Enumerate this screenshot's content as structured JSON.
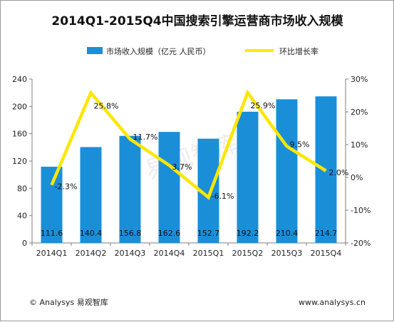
{
  "chart_data": {
    "type": "bar",
    "title": "2014Q1-2015Q4中国搜索引擎运营商市场收入规模",
    "categories": [
      "2014Q1",
      "2014Q2",
      "2014Q3",
      "2014Q4",
      "2015Q1",
      "2015Q2",
      "2015Q3",
      "2015Q4"
    ],
    "series": [
      {
        "name": "市场收入规模（亿元 人民币）",
        "type": "bar",
        "axis": "left",
        "color": "#1a8fd8",
        "values": [
          111.6,
          140.4,
          156.8,
          162.6,
          152.7,
          192.2,
          210.4,
          214.7
        ],
        "labels": [
          "111.6",
          "140.4",
          "156.8",
          "162.6",
          "152.7",
          "192.2",
          "210.4",
          "214.7"
        ]
      },
      {
        "name": "环比增长率",
        "type": "line",
        "axis": "right",
        "color": "#ffe600",
        "values": [
          -2.3,
          25.8,
          11.7,
          3.7,
          -6.1,
          25.9,
          9.5,
          2.0
        ],
        "labels": [
          "-2.3%",
          "25.8%",
          "11.7%",
          "3.7%",
          "-6.1%",
          "25.9%",
          "9.5%",
          "2.0%"
        ]
      }
    ],
    "y_left": {
      "range": [
        0,
        240
      ],
      "ticks": [
        "0",
        "40",
        "80",
        "120",
        "160",
        "200",
        "240"
      ]
    },
    "y_right": {
      "range": [
        -20,
        30
      ],
      "ticks": [
        "-20%",
        "-10%",
        "0%",
        "10%",
        "20%",
        "30%"
      ]
    },
    "legend_position": "top",
    "grid": false
  },
  "watermark": "易观智库",
  "footer": {
    "left": "© Analysys 易观智库",
    "right": "www.analysys.cn"
  }
}
